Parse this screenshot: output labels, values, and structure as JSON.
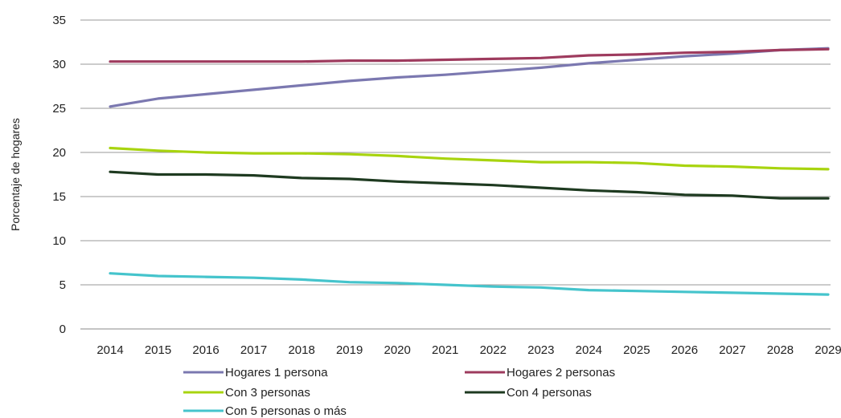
{
  "chart_data": {
    "type": "line",
    "title": "",
    "xlabel": "",
    "ylabel": "Porcentaje de hogares",
    "x": [
      2014,
      2015,
      2016,
      2017,
      2018,
      2019,
      2020,
      2021,
      2022,
      2023,
      2024,
      2025,
      2026,
      2027,
      2028,
      2029
    ],
    "x_tick_labels": [
      "2014",
      "2015",
      "2016",
      "2017",
      "2018",
      "2019",
      "2020",
      "2021",
      "2022",
      "2023",
      "2024",
      "2025",
      "2026",
      "2027",
      "2028",
      "2029"
    ],
    "ylim": [
      0,
      35
    ],
    "y_ticks": [
      0,
      5,
      10,
      15,
      20,
      25,
      30,
      35
    ],
    "y_tick_labels": [
      "0",
      "5",
      "10",
      "15",
      "20",
      "25",
      "30",
      "35"
    ],
    "grid": "horizontal",
    "legend_position": "bottom",
    "series": [
      {
        "name": "Hogares 1 persona",
        "color": "#7b78b0",
        "values": [
          25.2,
          26.1,
          26.6,
          27.1,
          27.6,
          28.1,
          28.5,
          28.8,
          29.2,
          29.6,
          30.1,
          30.5,
          30.9,
          31.2,
          31.6,
          31.8
        ]
      },
      {
        "name": "Hogares 2 personas",
        "color": "#9e3b5e",
        "values": [
          30.3,
          30.3,
          30.3,
          30.3,
          30.3,
          30.4,
          30.4,
          30.5,
          30.6,
          30.7,
          31.0,
          31.1,
          31.3,
          31.4,
          31.6,
          31.7
        ]
      },
      {
        "name": "Con 3 personas",
        "color": "#a8d40f",
        "values": [
          20.5,
          20.2,
          20.0,
          19.9,
          19.9,
          19.8,
          19.6,
          19.3,
          19.1,
          18.9,
          18.9,
          18.8,
          18.5,
          18.4,
          18.2,
          18.1
        ]
      },
      {
        "name": "Con 4 personas",
        "color": "#1e3a20",
        "values": [
          17.8,
          17.5,
          17.5,
          17.4,
          17.1,
          17.0,
          16.7,
          16.5,
          16.3,
          16.0,
          15.7,
          15.5,
          15.2,
          15.1,
          14.8,
          14.8
        ]
      },
      {
        "name": "Con 5 personas o más",
        "color": "#45c4cc",
        "values": [
          6.3,
          6.0,
          5.9,
          5.8,
          5.6,
          5.3,
          5.2,
          5.0,
          4.8,
          4.7,
          4.4,
          4.3,
          4.2,
          4.1,
          4.0,
          3.9
        ]
      }
    ]
  }
}
